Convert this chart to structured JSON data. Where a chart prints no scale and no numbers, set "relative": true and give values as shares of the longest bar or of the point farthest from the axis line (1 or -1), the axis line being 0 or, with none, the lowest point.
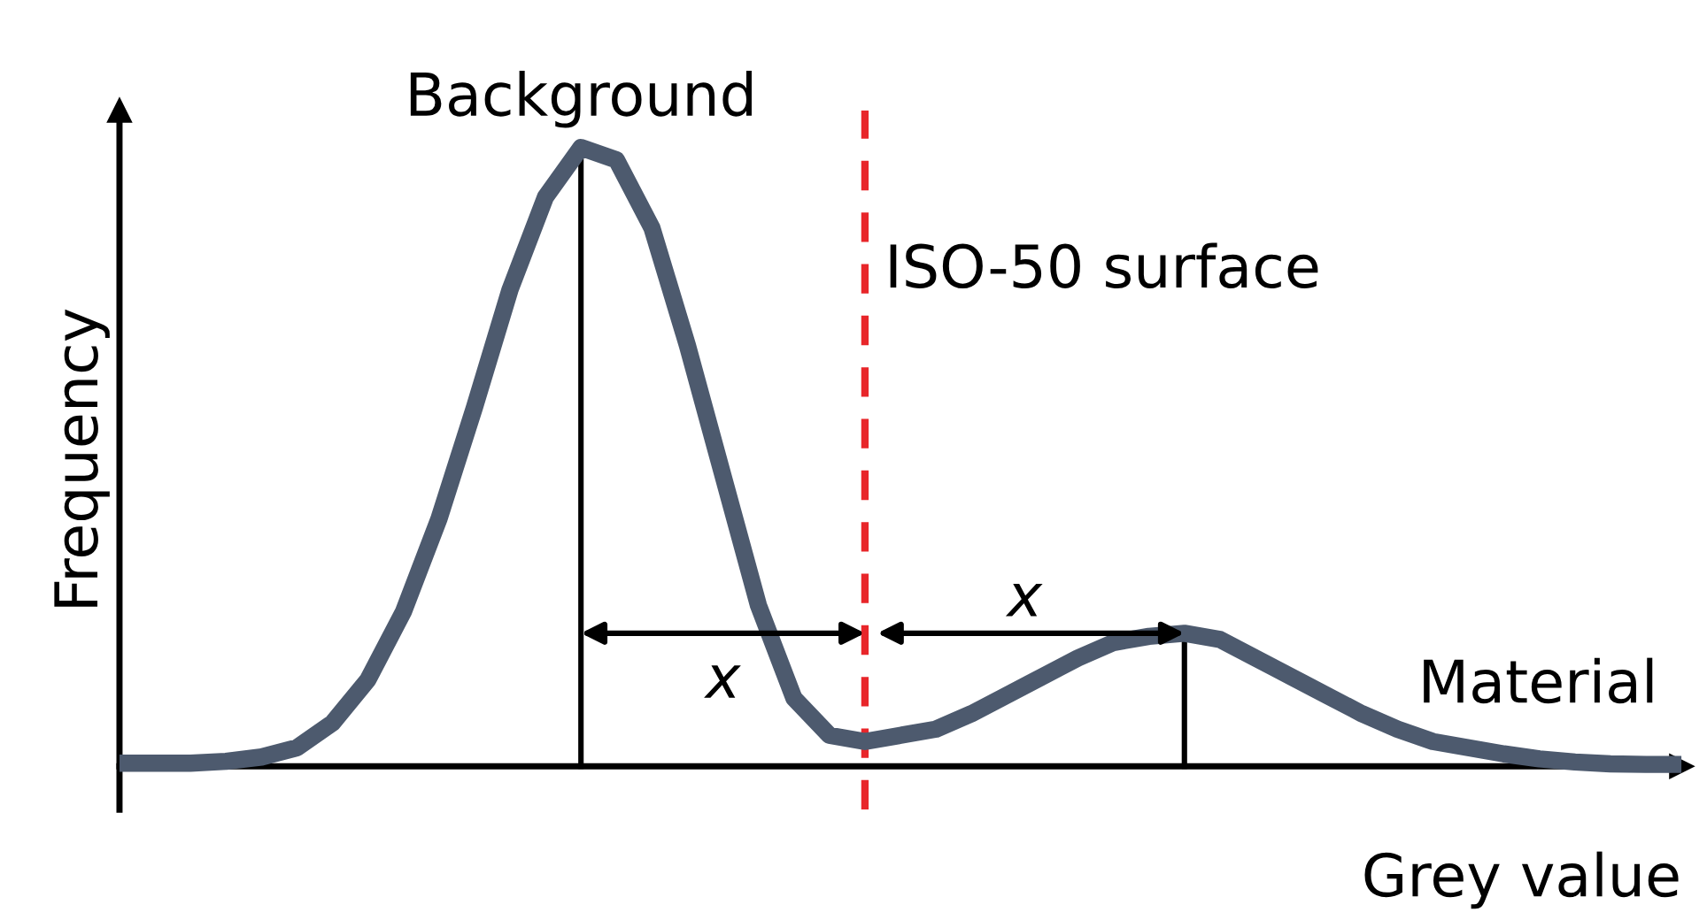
{
  "chart_data": {
    "type": "line",
    "relative": true,
    "xlabel": "Grey value",
    "ylabel": "Frequency",
    "marker": "none",
    "line_style": "solid",
    "categories": [
      null,
      null,
      null,
      null,
      null,
      null,
      null,
      null,
      null,
      null,
      null,
      null,
      null,
      null,
      null,
      null,
      null,
      null,
      null,
      null,
      null,
      null,
      null,
      null,
      null,
      null,
      null,
      null,
      null,
      null,
      null,
      null,
      null,
      null,
      null,
      null,
      null,
      null,
      null,
      null,
      null,
      null,
      null,
      null,
      null
    ],
    "series": [
      {
        "color": "#4d5a6e",
        "values": [
          0.005,
          0.005,
          0.005,
          0.008,
          0.015,
          0.03,
          0.07,
          0.14,
          0.25,
          0.4,
          0.58,
          0.77,
          0.92,
          1,
          0.98,
          0.87,
          0.68,
          0.47,
          0.26,
          0.11,
          0.05,
          0.04,
          0.05,
          0.06,
          0.085,
          0.115,
          0.145,
          0.175,
          0.2,
          0.21,
          0.215,
          0.205,
          0.175,
          0.145,
          0.115,
          0.085,
          0.06,
          0.04,
          0.03,
          0.02,
          0.012,
          0.007,
          0.004,
          0.003,
          0.003
        ]
      }
    ],
    "annotations": [
      "Background",
      "Material",
      "x",
      "x",
      "ISO-50 surface"
    ]
  }
}
